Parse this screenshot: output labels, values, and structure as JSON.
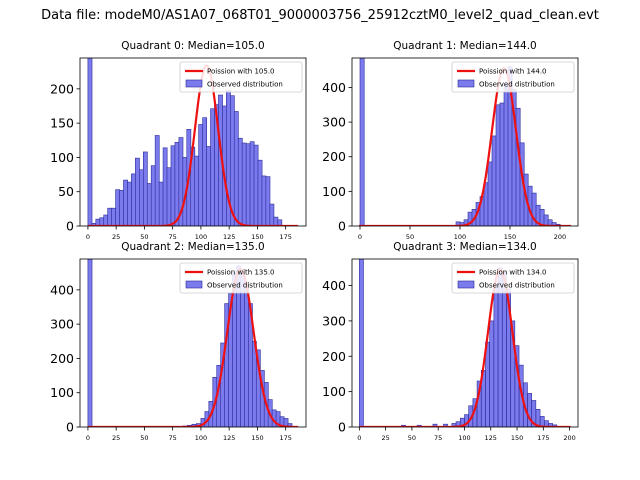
{
  "suptitle": "Data file: modeM0/AS1A07_068T01_9000003756_25912cztM0_level2_quad_clean.evt",
  "colors": {
    "bar_fill": "#7b7bee",
    "bar_edge": "#2a2a9a",
    "fit_line": "#ee1111"
  },
  "chart_data": [
    {
      "type": "bar",
      "title": "Quadrant 0: Median=105.0",
      "legend": [
        "Poission with 105.0",
        "Observed distribution"
      ],
      "legend_position": "top-right",
      "xlim": [
        -7,
        193
      ],
      "ylim": [
        0,
        245
      ],
      "xticks": [
        0,
        25,
        50,
        75,
        100,
        125,
        150,
        175
      ],
      "yticks": [
        0,
        50,
        100,
        150,
        200
      ],
      "bin_width": 3.64,
      "bins": [
        [
          0,
          245
        ],
        [
          3.5,
          4
        ],
        [
          7,
          10
        ],
        [
          10.5,
          12
        ],
        [
          14,
          16
        ],
        [
          17.5,
          26
        ],
        [
          21,
          26
        ],
        [
          24.5,
          53
        ],
        [
          28,
          52
        ],
        [
          31.5,
          67
        ],
        [
          35,
          64
        ],
        [
          38.5,
          76
        ],
        [
          42,
          99
        ],
        [
          45.5,
          82
        ],
        [
          49,
          108
        ],
        [
          52.5,
          62
        ],
        [
          56,
          88
        ],
        [
          59.5,
          132
        ],
        [
          63,
          64
        ],
        [
          66.5,
          114
        ],
        [
          70,
          85
        ],
        [
          73.5,
          117
        ],
        [
          77,
          122
        ],
        [
          80.5,
          129
        ],
        [
          84,
          100
        ],
        [
          87.5,
          141
        ],
        [
          91,
          115
        ],
        [
          94.5,
          102
        ],
        [
          98,
          148
        ],
        [
          101.5,
          158
        ],
        [
          105,
          116
        ],
        [
          108.5,
          171
        ],
        [
          112,
          177
        ],
        [
          115.5,
          191
        ],
        [
          119,
          175
        ],
        [
          122.5,
          198
        ],
        [
          126,
          190
        ],
        [
          129.5,
          167
        ],
        [
          133,
          128
        ],
        [
          136.5,
          121
        ],
        [
          140,
          120
        ],
        [
          143.5,
          123
        ],
        [
          147,
          118
        ],
        [
          150.5,
          96
        ],
        [
          154,
          73
        ],
        [
          157.5,
          72
        ],
        [
          161,
          32
        ],
        [
          164.5,
          13
        ],
        [
          168,
          9
        ]
      ],
      "fit": {
        "label": "Poission with 105.0",
        "mean": 105.0,
        "peak": 234
      }
    },
    {
      "type": "bar",
      "title": "Quadrant 1: Median=144.0",
      "legend": [
        "Poission with 144.0",
        "Observed distribution"
      ],
      "legend_position": "top-right",
      "xlim": [
        -8,
        218
      ],
      "ylim": [
        0,
        485
      ],
      "xticks": [
        0,
        50,
        100,
        150,
        200
      ],
      "yticks": [
        0,
        100,
        200,
        300,
        400
      ],
      "bin_width": 4.2,
      "bins": [
        [
          0,
          485
        ],
        [
          96,
          12
        ],
        [
          100,
          10
        ],
        [
          104,
          18
        ],
        [
          108,
          40
        ],
        [
          112,
          48
        ],
        [
          116,
          68
        ],
        [
          120,
          85
        ],
        [
          124,
          125
        ],
        [
          128,
          185
        ],
        [
          132,
          260
        ],
        [
          136,
          350
        ],
        [
          140,
          355
        ],
        [
          144,
          410
        ],
        [
          148,
          460
        ],
        [
          152,
          395
        ],
        [
          156,
          340
        ],
        [
          160,
          240
        ],
        [
          164,
          150
        ],
        [
          168,
          115
        ],
        [
          172,
          95
        ],
        [
          176,
          60
        ],
        [
          180,
          48
        ],
        [
          184,
          32
        ],
        [
          188,
          18
        ],
        [
          192,
          10
        ],
        [
          196,
          5
        ]
      ],
      "fit": {
        "label": "Poission with 144.0",
        "mean": 144.0,
        "peak": 455
      }
    },
    {
      "type": "bar",
      "title": "Quadrant 2: Median=135.0",
      "legend": [
        "Poission with 135.0",
        "Observed distribution"
      ],
      "legend_position": "top-right",
      "xlim": [
        -7,
        193
      ],
      "ylim": [
        0,
        490
      ],
      "xticks": [
        0,
        25,
        50,
        75,
        100,
        125,
        150,
        175
      ],
      "yticks": [
        0,
        100,
        200,
        300,
        400
      ],
      "bin_width": 3.64,
      "bins": [
        [
          0,
          490
        ],
        [
          84,
          3
        ],
        [
          88,
          5
        ],
        [
          92,
          8
        ],
        [
          96,
          10
        ],
        [
          100,
          25
        ],
        [
          103.5,
          45
        ],
        [
          107,
          75
        ],
        [
          110.5,
          145
        ],
        [
          114,
          180
        ],
        [
          117.5,
          245
        ],
        [
          121,
          360
        ],
        [
          124.5,
          390
        ],
        [
          128,
          450
        ],
        [
          131.5,
          470
        ],
        [
          135,
          450
        ],
        [
          138.5,
          420
        ],
        [
          142,
          360
        ],
        [
          145.5,
          250
        ],
        [
          149,
          225
        ],
        [
          152.5,
          165
        ],
        [
          156,
          130
        ],
        [
          159.5,
          80
        ],
        [
          163,
          50
        ],
        [
          166.5,
          45
        ],
        [
          170,
          30
        ],
        [
          173.5,
          25
        ],
        [
          177,
          10
        ]
      ],
      "fit": {
        "label": "Poission with 135.0",
        "mean": 135.0,
        "peak": 460
      }
    },
    {
      "type": "bar",
      "title": "Quadrant 3: Median=134.0",
      "legend": [
        "Poission with 134.0",
        "Observed distribution"
      ],
      "legend_position": "top-right",
      "xlim": [
        -7,
        208
      ],
      "ylim": [
        0,
        475
      ],
      "xticks": [
        0,
        25,
        50,
        75,
        100,
        125,
        150,
        175,
        200
      ],
      "yticks": [
        0,
        100,
        200,
        300,
        400
      ],
      "bin_width": 3.9,
      "bins": [
        [
          0,
          475
        ],
        [
          40,
          5
        ],
        [
          55,
          5
        ],
        [
          70,
          8
        ],
        [
          80,
          8
        ],
        [
          88,
          10
        ],
        [
          92,
          15
        ],
        [
          96,
          25
        ],
        [
          100,
          35
        ],
        [
          104,
          60
        ],
        [
          108,
          80
        ],
        [
          112,
          130
        ],
        [
          116,
          160
        ],
        [
          120,
          240
        ],
        [
          124,
          300
        ],
        [
          128,
          400
        ],
        [
          132,
          450
        ],
        [
          136,
          440
        ],
        [
          140,
          390
        ],
        [
          144,
          300
        ],
        [
          148,
          230
        ],
        [
          152,
          175
        ],
        [
          156,
          125
        ],
        [
          160,
          95
        ],
        [
          164,
          75
        ],
        [
          168,
          50
        ],
        [
          172,
          30
        ],
        [
          176,
          18
        ],
        [
          180,
          10
        ],
        [
          184,
          6
        ]
      ],
      "fit": {
        "label": "Poission with 134.0",
        "mean": 134.0,
        "peak": 445
      }
    }
  ]
}
